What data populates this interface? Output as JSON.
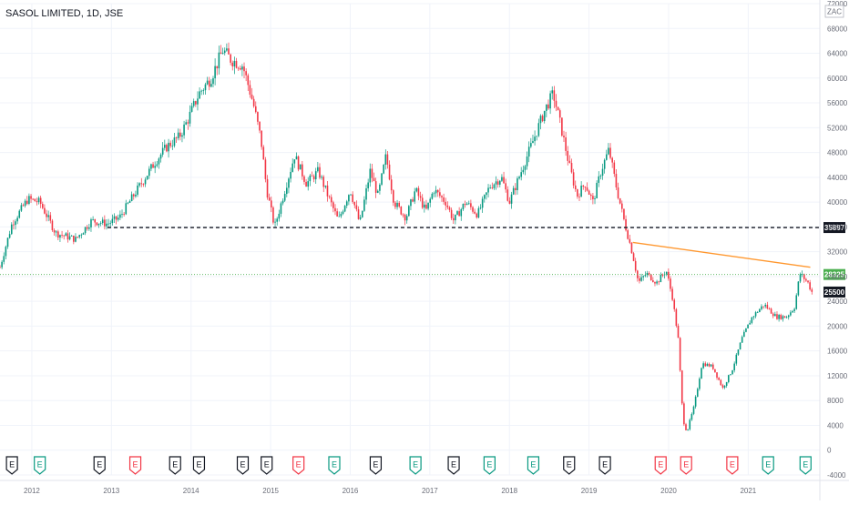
{
  "chart_data": {
    "type": "candlestick",
    "title": "SASOL LIMITED, 1D, JSE",
    "currency": "ZAC",
    "ylim": [
      -4000,
      72000
    ],
    "y_ticks": [
      -4000,
      0,
      4000,
      8000,
      12000,
      16000,
      20000,
      24000,
      28000,
      32000,
      36000,
      40000,
      44000,
      48000,
      52000,
      56000,
      60000,
      64000,
      68000,
      72000
    ],
    "x_ticks": [
      "2012",
      "2013",
      "2014",
      "2015",
      "2016",
      "2017",
      "2018",
      "2019",
      "2020",
      "2021"
    ],
    "xlim": [
      2011.6,
      2021.9
    ],
    "price_path": [
      [
        2011.6,
        29500
      ],
      [
        2011.75,
        36500
      ],
      [
        2011.95,
        40500
      ],
      [
        2012.1,
        40000
      ],
      [
        2012.3,
        35000
      ],
      [
        2012.55,
        34000
      ],
      [
        2012.75,
        37000
      ],
      [
        2012.95,
        36500
      ],
      [
        2013.1,
        37500
      ],
      [
        2013.25,
        40500
      ],
      [
        2013.4,
        43500
      ],
      [
        2013.55,
        46500
      ],
      [
        2013.7,
        49000
      ],
      [
        2013.85,
        50500
      ],
      [
        2013.95,
        53000
      ],
      [
        2014.1,
        57500
      ],
      [
        2014.25,
        60000
      ],
      [
        2014.4,
        64500
      ],
      [
        2014.5,
        63000
      ],
      [
        2014.65,
        62000
      ],
      [
        2014.78,
        56000
      ],
      [
        2014.88,
        50000
      ],
      [
        2014.95,
        42000
      ],
      [
        2015.05,
        36000
      ],
      [
        2015.18,
        42000
      ],
      [
        2015.3,
        47500
      ],
      [
        2015.45,
        43000
      ],
      [
        2015.6,
        45000
      ],
      [
        2015.72,
        41000
      ],
      [
        2015.85,
        37000
      ],
      [
        2016.0,
        42000
      ],
      [
        2016.12,
        36500
      ],
      [
        2016.25,
        45000
      ],
      [
        2016.35,
        41000
      ],
      [
        2016.45,
        47500
      ],
      [
        2016.55,
        40000
      ],
      [
        2016.7,
        37500
      ],
      [
        2016.82,
        42000
      ],
      [
        2016.95,
        38500
      ],
      [
        2017.05,
        42000
      ],
      [
        2017.2,
        40000
      ],
      [
        2017.3,
        37000
      ],
      [
        2017.45,
        40000
      ],
      [
        2017.6,
        38000
      ],
      [
        2017.75,
        42500
      ],
      [
        2017.9,
        44000
      ],
      [
        2018.0,
        40000
      ],
      [
        2018.15,
        45000
      ],
      [
        2018.3,
        50000
      ],
      [
        2018.45,
        55000
      ],
      [
        2018.55,
        57500
      ],
      [
        2018.65,
        52000
      ],
      [
        2018.75,
        46000
      ],
      [
        2018.85,
        41000
      ],
      [
        2018.95,
        43000
      ],
      [
        2019.05,
        40000
      ],
      [
        2019.15,
        45000
      ],
      [
        2019.25,
        48500
      ],
      [
        2019.35,
        42000
      ],
      [
        2019.45,
        36500
      ],
      [
        2019.55,
        31500
      ],
      [
        2019.62,
        27000
      ],
      [
        2019.72,
        28500
      ],
      [
        2019.85,
        27000
      ],
      [
        2019.97,
        29000
      ],
      [
        2020.05,
        24500
      ],
      [
        2020.12,
        18000
      ],
      [
        2020.18,
        5000
      ],
      [
        2020.23,
        3000
      ],
      [
        2020.32,
        7000
      ],
      [
        2020.42,
        14000
      ],
      [
        2020.55,
        13500
      ],
      [
        2020.68,
        10000
      ],
      [
        2020.8,
        13000
      ],
      [
        2020.92,
        18000
      ],
      [
        2021.05,
        21500
      ],
      [
        2021.2,
        23500
      ],
      [
        2021.35,
        21500
      ],
      [
        2021.48,
        21500
      ],
      [
        2021.58,
        23000
      ],
      [
        2021.65,
        28500
      ],
      [
        2021.75,
        27000
      ],
      [
        2021.8,
        25500
      ]
    ],
    "horizontal_levels": [
      {
        "value": 35897,
        "label": "35897",
        "style": "dashed",
        "color": "#131722",
        "from_x": 2012.95
      },
      {
        "value": 28325,
        "label": "28325",
        "style": "dotted",
        "color": "#4caf50"
      }
    ],
    "current_price": {
      "value": 25500,
      "label": "25500"
    },
    "trendline": {
      "from": [
        2019.55,
        33500
      ],
      "to": [
        2021.78,
        29500
      ],
      "color": "#ff9830"
    },
    "events": [
      {
        "x": 2011.75,
        "label": "E",
        "color": "#131722"
      },
      {
        "x": 2012.1,
        "label": "E",
        "color": "#089981"
      },
      {
        "x": 2012.85,
        "label": "E",
        "color": "#131722"
      },
      {
        "x": 2013.3,
        "label": "E",
        "color": "#f23645"
      },
      {
        "x": 2013.8,
        "label": "E",
        "color": "#131722"
      },
      {
        "x": 2014.1,
        "label": "E",
        "color": "#131722"
      },
      {
        "x": 2014.65,
        "label": "E",
        "color": "#131722"
      },
      {
        "x": 2014.95,
        "label": "E",
        "color": "#131722"
      },
      {
        "x": 2015.35,
        "label": "E",
        "color": "#f23645"
      },
      {
        "x": 2015.8,
        "label": "E",
        "color": "#089981"
      },
      {
        "x": 2016.32,
        "label": "E",
        "color": "#131722"
      },
      {
        "x": 2016.82,
        "label": "E",
        "color": "#089981"
      },
      {
        "x": 2017.3,
        "label": "E",
        "color": "#131722"
      },
      {
        "x": 2017.75,
        "label": "E",
        "color": "#089981"
      },
      {
        "x": 2018.3,
        "label": "E",
        "color": "#089981"
      },
      {
        "x": 2018.75,
        "label": "E",
        "color": "#131722"
      },
      {
        "x": 2019.2,
        "label": "E",
        "color": "#131722"
      },
      {
        "x": 2019.9,
        "label": "E",
        "color": "#f23645"
      },
      {
        "x": 2020.22,
        "label": "E",
        "color": "#f23645"
      },
      {
        "x": 2020.8,
        "label": "E",
        "color": "#f23645"
      },
      {
        "x": 2021.25,
        "label": "E",
        "color": "#089981"
      },
      {
        "x": 2021.72,
        "label": "E",
        "color": "#089981"
      }
    ],
    "colors": {
      "up": "#089981",
      "down": "#f23645",
      "grid": "#f0f3fa",
      "axis_text": "#6a6d78"
    },
    "grid": true
  }
}
